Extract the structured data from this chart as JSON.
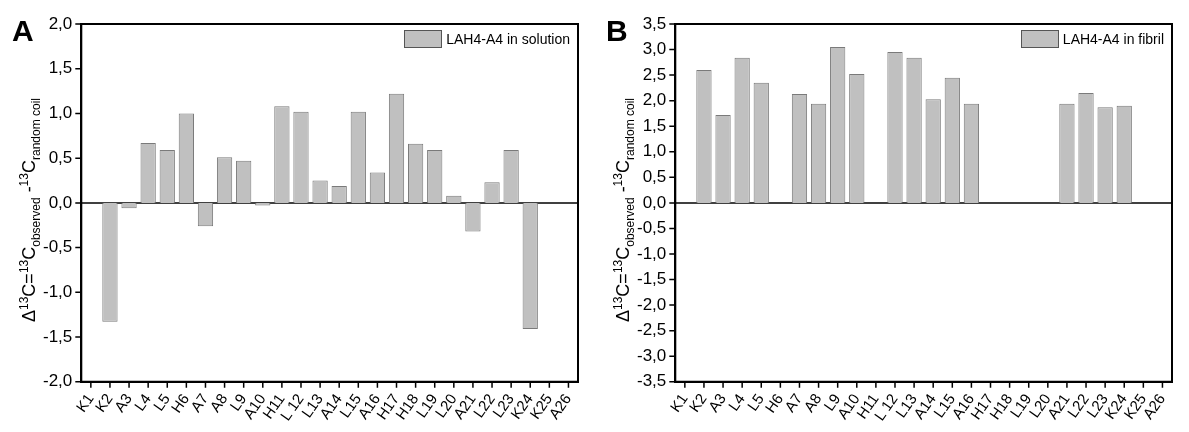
{
  "chart_data": [
    {
      "type": "bar",
      "title": "A",
      "ylabel": "Δ$^{13}$C=$^{13}$C$_{observed}$ -$^{13}$C$_{random coil}$",
      "categories": [
        "K1",
        "K2",
        "A3",
        "L4",
        "L5",
        "H6",
        "A7",
        "A8",
        "L9",
        "A10",
        "H11",
        "L 12",
        "L13",
        "A14",
        "L15",
        "A16",
        "H17",
        "H18",
        "L19",
        "L20",
        "A21",
        "L22",
        "L23",
        "K24",
        "K25",
        "A26"
      ],
      "series": [
        {
          "name": "LAH4-A4 in solution",
          "color": "#c0c0c0",
          "values": [
            null,
            -1.33,
            -0.06,
            0.67,
            0.59,
            1.0,
            -0.26,
            0.51,
            0.47,
            -0.03,
            1.08,
            1.02,
            0.25,
            0.19,
            1.02,
            0.34,
            1.22,
            0.66,
            0.59,
            0.08,
            -0.32,
            0.23,
            0.59,
            -1.41,
            null,
            null
          ]
        }
      ],
      "ylim": [
        -2,
        2
      ],
      "yticks": [
        {
          "value": -2,
          "label": "-2,0"
        },
        {
          "value": -1.5,
          "label": "-1,5"
        },
        {
          "value": -1,
          "label": "-1,0"
        },
        {
          "value": -0.5,
          "label": "-0,5"
        },
        {
          "value": 0,
          "label": "0,0"
        },
        {
          "value": 0.5,
          "label": "0,5"
        },
        {
          "value": 1,
          "label": "1,0"
        },
        {
          "value": 1.5,
          "label": "1,5"
        },
        {
          "value": 2,
          "label": "2,0"
        }
      ],
      "ref_lines": [
        {
          "axis": "y",
          "value": 0,
          "color": "#000000"
        }
      ],
      "grid": false,
      "legend": "top right"
    },
    {
      "type": "bar",
      "title": "B",
      "ylabel": "Δ$^{13}$C=$^{13}$C$_{observed}$ -$^{13}$C$_{random coil}$",
      "categories": [
        "K1",
        "K2",
        "A3",
        "L4",
        "L5",
        "H6",
        "A7",
        "A8",
        "L9",
        "A10",
        "H11",
        "L 12",
        "L13",
        "A14",
        "L15",
        "A16",
        "H17",
        "H18",
        "L19",
        "L20",
        "A21",
        "L22",
        "L23",
        "K24",
        "K25",
        "A26"
      ],
      "series": [
        {
          "name": "LAH4-A4 in fibril",
          "color": "#c0c0c0",
          "values": [
            null,
            2.6,
            1.72,
            2.84,
            2.35,
            null,
            2.13,
            1.94,
            3.05,
            2.52,
            null,
            2.95,
            2.84,
            2.03,
            2.45,
            1.94,
            null,
            null,
            null,
            null,
            1.94,
            2.15,
            1.87,
            1.9,
            null,
            null
          ]
        }
      ],
      "ylim": [
        -3.5,
        3.5
      ],
      "yticks": [
        {
          "value": -3.5,
          "label": "-3,5"
        },
        {
          "value": -3,
          "label": "-3,0"
        },
        {
          "value": -2.5,
          "label": "-2,5"
        },
        {
          "value": -2,
          "label": "-2,0"
        },
        {
          "value": -1.5,
          "label": "-1,5"
        },
        {
          "value": -1,
          "label": "-1,0"
        },
        {
          "value": -0.5,
          "label": "-0,5"
        },
        {
          "value": 0,
          "label": "0,0"
        },
        {
          "value": 0.5,
          "label": "0,5"
        },
        {
          "value": 1,
          "label": "1,0"
        },
        {
          "value": 1.5,
          "label": "1,5"
        },
        {
          "value": 2,
          "label": "2,0"
        },
        {
          "value": 2.5,
          "label": "2,5"
        },
        {
          "value": 3,
          "label": "3,0"
        },
        {
          "value": 3.5,
          "label": "3,5"
        }
      ],
      "ref_lines": [
        {
          "axis": "y",
          "value": 0,
          "color": "#000000"
        }
      ],
      "grid": false,
      "legend": "top right"
    }
  ]
}
